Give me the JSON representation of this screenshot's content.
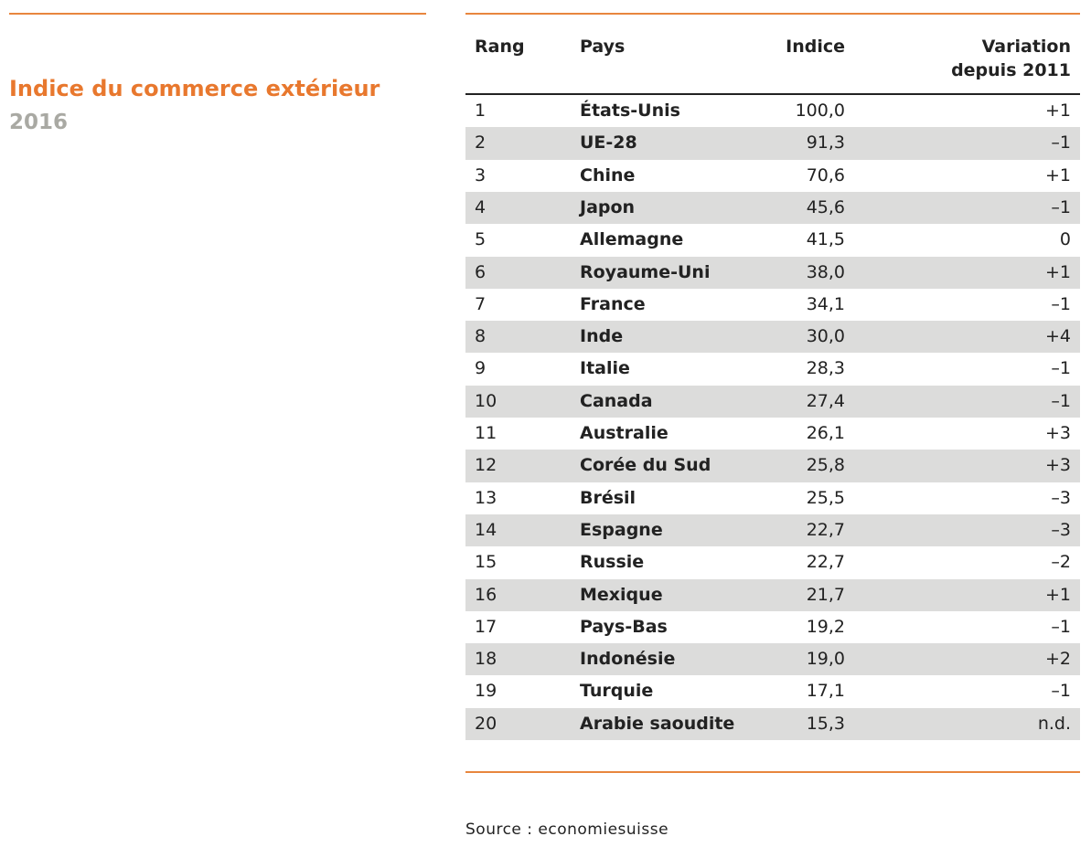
{
  "header": {
    "title": "Indice du commerce extérieur",
    "subtitle": "2016"
  },
  "table": {
    "columns": [
      "Rang",
      "Pays",
      "Indice",
      "Variation depuis 2011"
    ],
    "rows": [
      [
        "1",
        "États-Unis",
        "100,0",
        "+1"
      ],
      [
        "2",
        "UE-28",
        "91,3",
        "–1"
      ],
      [
        "3",
        "Chine",
        "70,6",
        "+1"
      ],
      [
        "4",
        "Japon",
        "45,6",
        "–1"
      ],
      [
        "5",
        "Allemagne",
        "41,5",
        "0"
      ],
      [
        "6",
        "Royaume-Uni",
        "38,0",
        "+1"
      ],
      [
        "7",
        "France",
        "34,1",
        "–1"
      ],
      [
        "8",
        "Inde",
        "30,0",
        "+4"
      ],
      [
        "9",
        "Italie",
        "28,3",
        "–1"
      ],
      [
        "10",
        "Canada",
        "27,4",
        "–1"
      ],
      [
        "11",
        "Australie",
        "26,1",
        "+3"
      ],
      [
        "12",
        "Corée du Sud",
        "25,8",
        "+3"
      ],
      [
        "13",
        "Brésil",
        "25,5",
        "–3"
      ],
      [
        "14",
        "Espagne",
        "22,7",
        "–3"
      ],
      [
        "15",
        "Russie",
        "22,7",
        "–2"
      ],
      [
        "16",
        "Mexique",
        "21,7",
        "+1"
      ],
      [
        "17",
        "Pays-Bas",
        "19,2",
        "–1"
      ],
      [
        "18",
        "Indonésie",
        "19,0",
        "+2"
      ],
      [
        "19",
        "Turquie",
        "17,1",
        "–1"
      ],
      [
        "20",
        "Arabie saoudite",
        "15,3",
        "n.d."
      ]
    ]
  },
  "source": "Source : economiesuisse"
}
